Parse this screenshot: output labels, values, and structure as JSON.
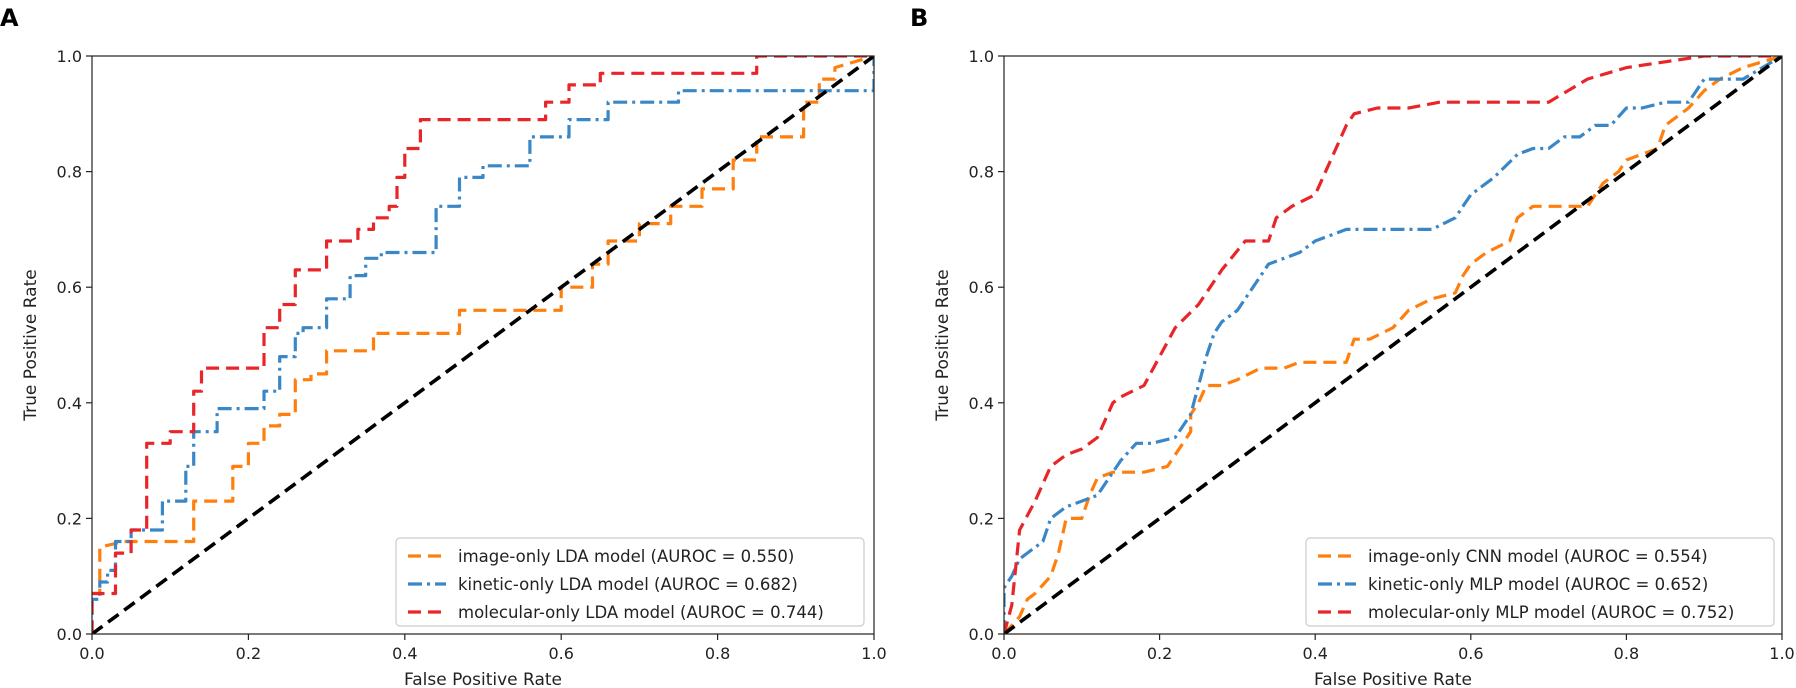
{
  "chart_data": [
    {
      "type": "line",
      "panel_label": "A",
      "xlabel": "False Positive Rate",
      "ylabel": "True Positive Rate",
      "xlim": [
        0.0,
        1.0
      ],
      "ylim": [
        0.0,
        1.0
      ],
      "x_ticks": [
        "0.0",
        "0.2",
        "0.4",
        "0.6",
        "0.8",
        "1.0"
      ],
      "y_ticks": [
        "0.0",
        "0.2",
        "0.4",
        "0.6",
        "0.8",
        "1.0"
      ],
      "legend_position": "lower-right",
      "grid": false,
      "series": [
        {
          "name": "image-only LDA model (AUROC = 0.550)",
          "color": "#ff7f0e",
          "style": "dashed",
          "x": [
            0,
            0,
            0.01,
            0.01,
            0.04,
            0.04,
            0.13,
            0.13,
            0.18,
            0.18,
            0.2,
            0.2,
            0.22,
            0.22,
            0.24,
            0.24,
            0.26,
            0.26,
            0.28,
            0.28,
            0.3,
            0.3,
            0.31,
            0.31,
            0.36,
            0.36,
            0.47,
            0.47,
            0.6,
            0.6,
            0.64,
            0.64,
            0.66,
            0.66,
            0.7,
            0.7,
            0.74,
            0.74,
            0.76,
            0.76,
            0.78,
            0.78,
            0.82,
            0.82,
            0.85,
            0.85,
            0.91,
            0.91,
            0.93,
            0.93,
            0.95,
            0.95,
            1.0
          ],
          "y": [
            0,
            0.07,
            0.07,
            0.15,
            0.16,
            0.16,
            0.16,
            0.23,
            0.23,
            0.29,
            0.29,
            0.33,
            0.33,
            0.36,
            0.36,
            0.38,
            0.38,
            0.44,
            0.44,
            0.45,
            0.45,
            0.49,
            0.49,
            0.49,
            0.49,
            0.52,
            0.52,
            0.56,
            0.56,
            0.6,
            0.6,
            0.64,
            0.64,
            0.68,
            0.68,
            0.71,
            0.71,
            0.74,
            0.74,
            0.74,
            0.74,
            0.77,
            0.77,
            0.82,
            0.82,
            0.86,
            0.86,
            0.92,
            0.92,
            0.96,
            0.96,
            0.98,
            1.0
          ]
        },
        {
          "name": "kinetic-only LDA model (AUROC = 0.682)",
          "color": "#3a87c8",
          "style": "dashdot",
          "x": [
            0,
            0,
            0.01,
            0.01,
            0.02,
            0.02,
            0.03,
            0.03,
            0.05,
            0.05,
            0.09,
            0.09,
            0.12,
            0.12,
            0.13,
            0.13,
            0.16,
            0.16,
            0.22,
            0.22,
            0.24,
            0.24,
            0.26,
            0.26,
            0.27,
            0.27,
            0.3,
            0.3,
            0.33,
            0.33,
            0.35,
            0.35,
            0.37,
            0.37,
            0.44,
            0.44,
            0.47,
            0.47,
            0.5,
            0.5,
            0.56,
            0.56,
            0.61,
            0.61,
            0.66,
            0.66,
            0.75,
            0.75,
            0.88,
            0.88,
            0.94,
            0.94,
            1.0,
            1.0
          ],
          "y": [
            0,
            0.06,
            0.06,
            0.09,
            0.09,
            0.11,
            0.11,
            0.16,
            0.16,
            0.18,
            0.18,
            0.23,
            0.23,
            0.29,
            0.29,
            0.35,
            0.35,
            0.39,
            0.39,
            0.42,
            0.42,
            0.48,
            0.48,
            0.52,
            0.52,
            0.53,
            0.53,
            0.58,
            0.58,
            0.62,
            0.62,
            0.65,
            0.65,
            0.66,
            0.66,
            0.74,
            0.74,
            0.79,
            0.79,
            0.81,
            0.81,
            0.86,
            0.86,
            0.89,
            0.89,
            0.92,
            0.92,
            0.94,
            0.94,
            0.94,
            0.94,
            0.94,
            0.94,
            1.0
          ]
        },
        {
          "name": "molecular-only LDA model (AUROC = 0.744)",
          "color": "#e8262a",
          "style": "dashed",
          "x": [
            0,
            0,
            0.03,
            0.03,
            0.05,
            0.05,
            0.07,
            0.07,
            0.1,
            0.1,
            0.13,
            0.13,
            0.14,
            0.14,
            0.22,
            0.22,
            0.24,
            0.24,
            0.26,
            0.26,
            0.3,
            0.3,
            0.34,
            0.34,
            0.36,
            0.36,
            0.38,
            0.38,
            0.39,
            0.39,
            0.4,
            0.4,
            0.42,
            0.42,
            0.43,
            0.43,
            0.58,
            0.58,
            0.61,
            0.61,
            0.65,
            0.65,
            0.85,
            0.85,
            0.95,
            0.95,
            1.0
          ],
          "y": [
            0,
            0.07,
            0.07,
            0.14,
            0.14,
            0.18,
            0.18,
            0.33,
            0.33,
            0.35,
            0.35,
            0.42,
            0.42,
            0.46,
            0.46,
            0.53,
            0.53,
            0.57,
            0.57,
            0.63,
            0.63,
            0.68,
            0.68,
            0.7,
            0.7,
            0.72,
            0.72,
            0.74,
            0.74,
            0.79,
            0.79,
            0.84,
            0.84,
            0.89,
            0.89,
            0.89,
            0.89,
            0.92,
            0.92,
            0.95,
            0.95,
            0.97,
            0.97,
            1.0,
            1.0,
            1.0,
            1.0
          ]
        },
        {
          "name": "chance",
          "color": "#000000",
          "style": "dashed-bold",
          "show_in_legend": false,
          "x": [
            0,
            1
          ],
          "y": [
            0,
            1
          ]
        }
      ]
    },
    {
      "type": "line",
      "panel_label": "B",
      "xlabel": "False Positive Rate",
      "ylabel": "True Positive Rate",
      "xlim": [
        0.0,
        1.0
      ],
      "ylim": [
        0.0,
        1.0
      ],
      "x_ticks": [
        "0.0",
        "0.2",
        "0.4",
        "0.6",
        "0.8",
        "1.0"
      ],
      "y_ticks": [
        "0.0",
        "0.2",
        "0.4",
        "0.6",
        "0.8",
        "1.0"
      ],
      "legend_position": "lower-right",
      "grid": false,
      "series": [
        {
          "name": "image-only CNN model (AUROC = 0.554)",
          "color": "#ff7f0e",
          "style": "dashed",
          "x": [
            0,
            0.02,
            0.03,
            0.04,
            0.06,
            0.07,
            0.08,
            0.1,
            0.11,
            0.12,
            0.14,
            0.18,
            0.21,
            0.24,
            0.24,
            0.25,
            0.26,
            0.28,
            0.3,
            0.33,
            0.36,
            0.38,
            0.44,
            0.45,
            0.47,
            0.5,
            0.52,
            0.55,
            0.58,
            0.59,
            0.6,
            0.62,
            0.65,
            0.66,
            0.68,
            0.7,
            0.75,
            0.76,
            0.77,
            0.79,
            0.8,
            0.84,
            0.85,
            0.88,
            0.9,
            0.92,
            0.95,
            1.0
          ],
          "y": [
            0,
            0.03,
            0.06,
            0.07,
            0.1,
            0.14,
            0.2,
            0.2,
            0.24,
            0.27,
            0.28,
            0.28,
            0.29,
            0.35,
            0.38,
            0.4,
            0.43,
            0.43,
            0.44,
            0.46,
            0.46,
            0.47,
            0.47,
            0.51,
            0.51,
            0.53,
            0.56,
            0.58,
            0.59,
            0.62,
            0.64,
            0.66,
            0.68,
            0.72,
            0.74,
            0.74,
            0.74,
            0.76,
            0.78,
            0.8,
            0.82,
            0.84,
            0.88,
            0.91,
            0.94,
            0.96,
            0.98,
            1.0
          ]
        },
        {
          "name": "kinetic-only MLP model (AUROC = 0.652)",
          "color": "#3a87c8",
          "style": "dashdot",
          "x": [
            0,
            0,
            0.01,
            0.02,
            0.03,
            0.05,
            0.06,
            0.08,
            0.1,
            0.12,
            0.14,
            0.15,
            0.17,
            0.19,
            0.22,
            0.24,
            0.25,
            0.26,
            0.27,
            0.28,
            0.3,
            0.32,
            0.34,
            0.36,
            0.38,
            0.4,
            0.44,
            0.48,
            0.52,
            0.55,
            0.58,
            0.6,
            0.63,
            0.66,
            0.68,
            0.7,
            0.72,
            0.74,
            0.76,
            0.78,
            0.8,
            0.82,
            0.85,
            0.88,
            0.9,
            0.92,
            0.95,
            1.0
          ],
          "y": [
            0,
            0.08,
            0.1,
            0.13,
            0.14,
            0.16,
            0.2,
            0.22,
            0.23,
            0.24,
            0.28,
            0.3,
            0.33,
            0.33,
            0.34,
            0.38,
            0.43,
            0.48,
            0.52,
            0.54,
            0.56,
            0.6,
            0.64,
            0.65,
            0.66,
            0.68,
            0.7,
            0.7,
            0.7,
            0.7,
            0.72,
            0.76,
            0.79,
            0.83,
            0.84,
            0.84,
            0.86,
            0.86,
            0.88,
            0.88,
            0.91,
            0.91,
            0.92,
            0.92,
            0.96,
            0.96,
            0.96,
            1.0
          ]
        },
        {
          "name": "molecular-only MLP model (AUROC = 0.752)",
          "color": "#e8262a",
          "style": "dashed",
          "x": [
            0,
            0.01,
            0.02,
            0.04,
            0.06,
            0.08,
            0.1,
            0.12,
            0.14,
            0.15,
            0.18,
            0.2,
            0.22,
            0.25,
            0.28,
            0.31,
            0.34,
            0.35,
            0.37,
            0.4,
            0.42,
            0.44,
            0.45,
            0.48,
            0.52,
            0.56,
            0.6,
            0.65,
            0.7,
            0.75,
            0.8,
            0.85,
            0.9,
            0.95,
            1.0
          ],
          "y": [
            0,
            0.05,
            0.18,
            0.23,
            0.29,
            0.31,
            0.32,
            0.34,
            0.4,
            0.41,
            0.43,
            0.48,
            0.53,
            0.57,
            0.63,
            0.68,
            0.68,
            0.72,
            0.74,
            0.76,
            0.82,
            0.88,
            0.9,
            0.91,
            0.91,
            0.92,
            0.92,
            0.92,
            0.92,
            0.96,
            0.98,
            0.99,
            1.0,
            1.0,
            1.0
          ]
        },
        {
          "name": "chance",
          "color": "#000000",
          "style": "dashed-bold",
          "show_in_legend": false,
          "x": [
            0,
            1
          ],
          "y": [
            0,
            1
          ]
        }
      ]
    }
  ]
}
